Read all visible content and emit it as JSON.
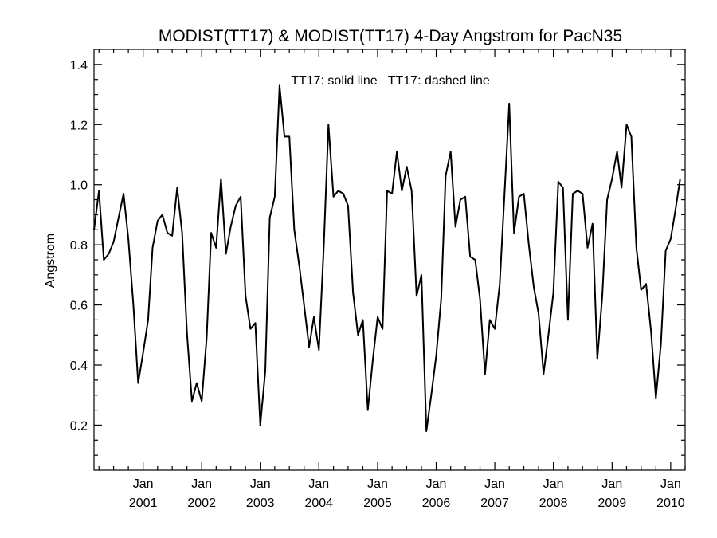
{
  "chart_data": {
    "type": "line",
    "title": "MODIST(TT17) & MODIST(TT17) 4-Day Angstrom for PacN35",
    "ylabel": "Angstrom",
    "xlabel": "",
    "annotation": "TT17: solid line   TT17: dashed line",
    "xlim": [
      "2000-03-01",
      "2010-04-01"
    ],
    "ylim": [
      0.05,
      1.45
    ],
    "y_ticks": [
      {
        "value": 0.2,
        "label": "0.2"
      },
      {
        "value": 0.4,
        "label": "0.4"
      },
      {
        "value": 0.6,
        "label": "0.6"
      },
      {
        "value": 0.8,
        "label": "0.8"
      },
      {
        "value": 1.0,
        "label": "1.0"
      },
      {
        "value": 1.2,
        "label": "1.2"
      },
      {
        "value": 1.4,
        "label": "1.4"
      }
    ],
    "x_ticks": [
      {
        "date": "2001-01-01",
        "month": "Jan",
        "year": "2001"
      },
      {
        "date": "2002-01-01",
        "month": "Jan",
        "year": "2002"
      },
      {
        "date": "2003-01-01",
        "month": "Jan",
        "year": "2003"
      },
      {
        "date": "2004-01-01",
        "month": "Jan",
        "year": "2004"
      },
      {
        "date": "2005-01-01",
        "month": "Jan",
        "year": "2005"
      },
      {
        "date": "2006-01-01",
        "month": "Jan",
        "year": "2006"
      },
      {
        "date": "2007-01-01",
        "month": "Jan",
        "year": "2007"
      },
      {
        "date": "2008-01-01",
        "month": "Jan",
        "year": "2008"
      },
      {
        "date": "2009-01-01",
        "month": "Jan",
        "year": "2009"
      },
      {
        "date": "2010-01-01",
        "month": "Jan",
        "year": "2010"
      }
    ],
    "grid": false,
    "series": [
      {
        "style": "solid",
        "color": "#000000",
        "points": [
          [
            "2000-03-01",
            0.85
          ],
          [
            "2000-04-01",
            0.98
          ],
          [
            "2000-05-01",
            0.75
          ],
          [
            "2000-06-01",
            0.77
          ],
          [
            "2000-07-01",
            0.81
          ],
          [
            "2000-08-01",
            0.89
          ],
          [
            "2000-09-01",
            0.97
          ],
          [
            "2000-10-01",
            0.82
          ],
          [
            "2000-11-01",
            0.6
          ],
          [
            "2000-12-01",
            0.34
          ],
          [
            "2001-01-01",
            0.44
          ],
          [
            "2001-02-01",
            0.55
          ],
          [
            "2001-03-01",
            0.79
          ],
          [
            "2001-04-01",
            0.88
          ],
          [
            "2001-05-01",
            0.9
          ],
          [
            "2001-06-01",
            0.84
          ],
          [
            "2001-07-01",
            0.83
          ],
          [
            "2001-08-01",
            0.99
          ],
          [
            "2001-09-01",
            0.84
          ],
          [
            "2001-10-01",
            0.51
          ],
          [
            "2001-11-01",
            0.28
          ],
          [
            "2001-12-01",
            0.34
          ],
          [
            "2002-01-01",
            0.28
          ],
          [
            "2002-02-01",
            0.49
          ],
          [
            "2002-03-01",
            0.84
          ],
          [
            "2002-04-01",
            0.79
          ],
          [
            "2002-05-01",
            1.02
          ],
          [
            "2002-06-01",
            0.77
          ],
          [
            "2002-07-01",
            0.86
          ],
          [
            "2002-08-01",
            0.93
          ],
          [
            "2002-09-01",
            0.96
          ],
          [
            "2002-10-01",
            0.63
          ],
          [
            "2002-11-01",
            0.52
          ],
          [
            "2002-12-01",
            0.54
          ],
          [
            "2003-01-01",
            0.2
          ],
          [
            "2003-02-01",
            0.38
          ],
          [
            "2003-03-01",
            0.89
          ],
          [
            "2003-04-01",
            0.96
          ],
          [
            "2003-05-01",
            1.33
          ],
          [
            "2003-06-01",
            1.16
          ],
          [
            "2003-07-01",
            1.16
          ],
          [
            "2003-08-01",
            0.85
          ],
          [
            "2003-09-01",
            0.73
          ],
          [
            "2003-10-01",
            0.6
          ],
          [
            "2003-11-01",
            0.46
          ],
          [
            "2003-12-01",
            0.56
          ],
          [
            "2004-01-01",
            0.45
          ],
          [
            "2004-02-01",
            0.8
          ],
          [
            "2004-03-01",
            1.2
          ],
          [
            "2004-04-01",
            0.96
          ],
          [
            "2004-05-01",
            0.98
          ],
          [
            "2004-06-01",
            0.97
          ],
          [
            "2004-07-01",
            0.93
          ],
          [
            "2004-08-01",
            0.64
          ],
          [
            "2004-09-01",
            0.5
          ],
          [
            "2004-10-01",
            0.55
          ],
          [
            "2004-11-01",
            0.25
          ],
          [
            "2004-12-01",
            0.41
          ],
          [
            "2005-01-01",
            0.56
          ],
          [
            "2005-02-01",
            0.52
          ],
          [
            "2005-03-01",
            0.98
          ],
          [
            "2005-04-01",
            0.97
          ],
          [
            "2005-05-01",
            1.11
          ],
          [
            "2005-06-01",
            0.98
          ],
          [
            "2005-07-01",
            1.06
          ],
          [
            "2005-08-01",
            0.98
          ],
          [
            "2005-09-01",
            0.63
          ],
          [
            "2005-10-01",
            0.7
          ],
          [
            "2005-11-01",
            0.18
          ],
          [
            "2005-12-01",
            0.3
          ],
          [
            "2006-01-01",
            0.43
          ],
          [
            "2006-02-01",
            0.62
          ],
          [
            "2006-03-01",
            1.03
          ],
          [
            "2006-04-01",
            1.11
          ],
          [
            "2006-05-01",
            0.86
          ],
          [
            "2006-06-01",
            0.95
          ],
          [
            "2006-07-01",
            0.96
          ],
          [
            "2006-08-01",
            0.76
          ],
          [
            "2006-09-01",
            0.75
          ],
          [
            "2006-10-01",
            0.62
          ],
          [
            "2006-11-01",
            0.37
          ],
          [
            "2006-12-01",
            0.55
          ],
          [
            "2007-01-01",
            0.52
          ],
          [
            "2007-02-01",
            0.67
          ],
          [
            "2007-03-01",
            0.95
          ],
          [
            "2007-04-01",
            1.27
          ],
          [
            "2007-05-01",
            0.84
          ],
          [
            "2007-06-01",
            0.96
          ],
          [
            "2007-07-01",
            0.97
          ],
          [
            "2007-08-01",
            0.8
          ],
          [
            "2007-09-01",
            0.66
          ],
          [
            "2007-10-01",
            0.57
          ],
          [
            "2007-11-01",
            0.37
          ],
          [
            "2007-12-01",
            0.5
          ],
          [
            "2008-01-01",
            0.64
          ],
          [
            "2008-02-01",
            1.01
          ],
          [
            "2008-03-01",
            0.99
          ],
          [
            "2008-04-01",
            0.55
          ],
          [
            "2008-05-01",
            0.97
          ],
          [
            "2008-06-01",
            0.98
          ],
          [
            "2008-07-01",
            0.97
          ],
          [
            "2008-08-01",
            0.79
          ],
          [
            "2008-09-01",
            0.87
          ],
          [
            "2008-10-01",
            0.42
          ],
          [
            "2008-11-01",
            0.63
          ],
          [
            "2008-12-01",
            0.95
          ],
          [
            "2009-01-01",
            1.02
          ],
          [
            "2009-02-01",
            1.11
          ],
          [
            "2009-03-01",
            0.99
          ],
          [
            "2009-04-01",
            1.2
          ],
          [
            "2009-05-01",
            1.16
          ],
          [
            "2009-06-01",
            0.79
          ],
          [
            "2009-07-01",
            0.65
          ],
          [
            "2009-08-01",
            0.67
          ],
          [
            "2009-09-01",
            0.51
          ],
          [
            "2009-10-01",
            0.29
          ],
          [
            "2009-11-01",
            0.47
          ],
          [
            "2009-12-01",
            0.78
          ],
          [
            "2010-01-01",
            0.82
          ],
          [
            "2010-02-01",
            0.92
          ],
          [
            "2010-03-01",
            1.02
          ]
        ]
      }
    ]
  }
}
